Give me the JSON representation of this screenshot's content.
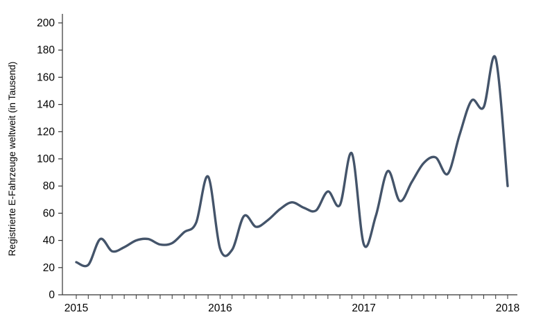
{
  "chart_data": {
    "type": "line",
    "title": "",
    "xlabel": "",
    "ylabel": "Registrierte E-Fahrzeuge weltweit (in Tausend)",
    "ylim": [
      0,
      200
    ],
    "y_ticks": [
      0,
      20,
      40,
      60,
      80,
      100,
      120,
      140,
      160,
      180,
      200
    ],
    "x_year_labels": [
      "2015",
      "2016",
      "2017",
      "2018"
    ],
    "legend": "none",
    "grid": "off",
    "line_color": "#44546A",
    "axis_color": "#333333",
    "smooth": true,
    "x": [
      "2015-01",
      "2015-02",
      "2015-03",
      "2015-04",
      "2015-05",
      "2015-06",
      "2015-07",
      "2015-08",
      "2015-09",
      "2015-10",
      "2015-11",
      "2015-12",
      "2016-01",
      "2016-02",
      "2016-03",
      "2016-04",
      "2016-05",
      "2016-06",
      "2016-07",
      "2016-08",
      "2016-09",
      "2016-10",
      "2016-11",
      "2016-12",
      "2017-01",
      "2017-02",
      "2017-03",
      "2017-04",
      "2017-05",
      "2017-06",
      "2017-07",
      "2017-08",
      "2017-09",
      "2017-10",
      "2017-11",
      "2017-12",
      "2018-01"
    ],
    "series": [
      {
        "name": "Registrierte E-Fahrzeuge weltweit (in Tausend)",
        "values": [
          24,
          22,
          41,
          32,
          35,
          40,
          41,
          37,
          38,
          46,
          53,
          87,
          34,
          33,
          58,
          50,
          55,
          63,
          68,
          64,
          62,
          76,
          66,
          104,
          37,
          58,
          91,
          69,
          83,
          97,
          101,
          89,
          118,
          143,
          138,
          174,
          80
        ]
      }
    ]
  }
}
